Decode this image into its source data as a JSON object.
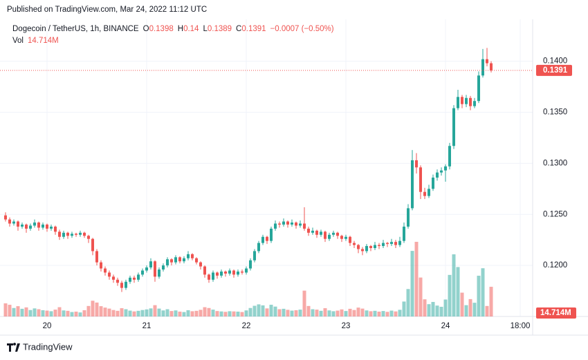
{
  "published": "Published on TradingView.com, Mar 24, 2022 11:12 UTC",
  "logo": "TradingView",
  "chart_data": {
    "type": "candlestick",
    "title": "Dogecoin / TetherUS, 1h, BINANCE",
    "legend_labels": [
      "O",
      "H",
      "L",
      "C"
    ],
    "change": "−0.0007 (−0.50%)",
    "up_color": "#26a69a",
    "down_color": "#ef5350",
    "grid": true,
    "xlim": [
      -1.333,
      127
    ],
    "xticks": [
      {
        "value": 10,
        "label": "20"
      },
      {
        "value": 34,
        "label": "21"
      },
      {
        "value": 58,
        "label": "22"
      },
      {
        "value": 82,
        "label": "23"
      },
      {
        "value": 106,
        "label": "24"
      },
      {
        "value": 124,
        "label": "18:00"
      }
    ],
    "ylim": [
      0.115,
      0.1441
    ],
    "yticks": [
      {
        "value": 0.12,
        "label": "0.1200"
      },
      {
        "value": 0.125,
        "label": "0.1250"
      },
      {
        "value": 0.13,
        "label": "0.1300"
      },
      {
        "value": 0.135,
        "label": "0.1350"
      },
      {
        "value": 0.14,
        "label": "0.1400"
      }
    ],
    "candles": [
      [
        0.1249,
        0.1252,
        0.1243,
        0.1245
      ],
      [
        0.1245,
        0.1247,
        0.1238,
        0.1241
      ],
      [
        0.1241,
        0.1245,
        0.1239,
        0.1243
      ],
      [
        0.1243,
        0.1244,
        0.1234,
        0.1238
      ],
      [
        0.1238,
        0.1242,
        0.1236,
        0.124
      ],
      [
        0.124,
        0.1241,
        0.1232,
        0.1236
      ],
      [
        0.1236,
        0.1241,
        0.1234,
        0.1239
      ],
      [
        0.1239,
        0.1245,
        0.1237,
        0.1242
      ],
      [
        0.1242,
        0.1243,
        0.1234,
        0.1237
      ],
      [
        0.1237,
        0.1242,
        0.1235,
        0.124
      ],
      [
        0.124,
        0.1241,
        0.1233,
        0.1236
      ],
      [
        0.1236,
        0.124,
        0.1234,
        0.1238
      ],
      [
        0.1238,
        0.1239,
        0.123,
        0.1233
      ],
      [
        0.1233,
        0.1235,
        0.1225,
        0.1228
      ],
      [
        0.1228,
        0.1234,
        0.1226,
        0.1232
      ],
      [
        0.1232,
        0.1233,
        0.1226,
        0.1229
      ],
      [
        0.1229,
        0.1233,
        0.1227,
        0.1231
      ],
      [
        0.1231,
        0.1232,
        0.1228,
        0.123
      ],
      [
        0.123,
        0.1234,
        0.1228,
        0.1232
      ],
      [
        0.1232,
        0.1233,
        0.1227,
        0.1229
      ],
      [
        0.1229,
        0.123,
        0.1222,
        0.1226
      ],
      [
        0.1226,
        0.1227,
        0.121,
        0.1214
      ],
      [
        0.1214,
        0.1216,
        0.12,
        0.1203
      ],
      [
        0.1203,
        0.1205,
        0.1194,
        0.1197
      ],
      [
        0.1197,
        0.1199,
        0.119,
        0.1193
      ],
      [
        0.1193,
        0.1195,
        0.1186,
        0.1189
      ],
      [
        0.1189,
        0.1191,
        0.1183,
        0.1186
      ],
      [
        0.1186,
        0.1188,
        0.118,
        0.1183
      ],
      [
        0.1183,
        0.1185,
        0.1174,
        0.1178
      ],
      [
        0.1178,
        0.1186,
        0.1176,
        0.1184
      ],
      [
        0.1184,
        0.119,
        0.1182,
        0.1188
      ],
      [
        0.1188,
        0.119,
        0.1183,
        0.1186
      ],
      [
        0.1186,
        0.1193,
        0.1184,
        0.1191
      ],
      [
        0.1191,
        0.1197,
        0.1189,
        0.1195
      ],
      [
        0.1195,
        0.12,
        0.1193,
        0.1198
      ],
      [
        0.1198,
        0.1207,
        0.1196,
        0.1204
      ],
      [
        0.1204,
        0.1205,
        0.1184,
        0.1189
      ],
      [
        0.1189,
        0.1198,
        0.1187,
        0.1196
      ],
      [
        0.1196,
        0.1202,
        0.1194,
        0.12
      ],
      [
        0.12,
        0.1208,
        0.1198,
        0.1206
      ],
      [
        0.1206,
        0.1207,
        0.12,
        0.1203
      ],
      [
        0.1203,
        0.121,
        0.1201,
        0.1208
      ],
      [
        0.1208,
        0.1209,
        0.1202,
        0.1204
      ],
      [
        0.1204,
        0.1209,
        0.1202,
        0.1207
      ],
      [
        0.1207,
        0.1214,
        0.1205,
        0.1211
      ],
      [
        0.1211,
        0.1212,
        0.1205,
        0.1207
      ],
      [
        0.1207,
        0.1208,
        0.1201,
        0.1203
      ],
      [
        0.1203,
        0.1204,
        0.1196,
        0.1199
      ],
      [
        0.1199,
        0.12,
        0.1188,
        0.1191
      ],
      [
        0.1191,
        0.1192,
        0.1183,
        0.1186
      ],
      [
        0.1186,
        0.1195,
        0.1184,
        0.1193
      ],
      [
        0.1193,
        0.1194,
        0.1187,
        0.119
      ],
      [
        0.119,
        0.1196,
        0.1188,
        0.1194
      ],
      [
        0.1194,
        0.1195,
        0.1189,
        0.1192
      ],
      [
        0.1192,
        0.1197,
        0.119,
        0.1195
      ],
      [
        0.1195,
        0.1196,
        0.1188,
        0.1191
      ],
      [
        0.1191,
        0.1196,
        0.1189,
        0.1194
      ],
      [
        0.1194,
        0.1196,
        0.1191,
        0.1193
      ],
      [
        0.1193,
        0.1199,
        0.1191,
        0.1197
      ],
      [
        0.1197,
        0.1207,
        0.1195,
        0.1205
      ],
      [
        0.1205,
        0.1216,
        0.1203,
        0.1214
      ],
      [
        0.1214,
        0.1224,
        0.1212,
        0.1222
      ],
      [
        0.1222,
        0.123,
        0.122,
        0.1228
      ],
      [
        0.1228,
        0.1229,
        0.1221,
        0.1224
      ],
      [
        0.1224,
        0.1238,
        0.1222,
        0.1236
      ],
      [
        0.1236,
        0.1244,
        0.1234,
        0.1241
      ],
      [
        0.1241,
        0.1243,
        0.1237,
        0.124
      ],
      [
        0.124,
        0.1246,
        0.1238,
        0.1243
      ],
      [
        0.1243,
        0.1244,
        0.1237,
        0.124
      ],
      [
        0.124,
        0.1245,
        0.1238,
        0.1242
      ],
      [
        0.1242,
        0.1243,
        0.1236,
        0.1239
      ],
      [
        0.1239,
        0.1244,
        0.1237,
        0.1241
      ],
      [
        0.1241,
        0.1257,
        0.1234,
        0.1236
      ],
      [
        0.1236,
        0.1238,
        0.1229,
        0.1232
      ],
      [
        0.1232,
        0.1237,
        0.123,
        0.1234
      ],
      [
        0.1234,
        0.1235,
        0.1227,
        0.123
      ],
      [
        0.123,
        0.1235,
        0.1228,
        0.1233
      ],
      [
        0.1233,
        0.1234,
        0.1223,
        0.1226
      ],
      [
        0.1226,
        0.1232,
        0.1224,
        0.123
      ],
      [
        0.123,
        0.1234,
        0.1228,
        0.1232
      ],
      [
        0.1232,
        0.1233,
        0.1226,
        0.1229
      ],
      [
        0.1229,
        0.123,
        0.1223,
        0.1226
      ],
      [
        0.1226,
        0.123,
        0.1224,
        0.1228
      ],
      [
        0.1228,
        0.1229,
        0.1219,
        0.1222
      ],
      [
        0.1222,
        0.1224,
        0.1217,
        0.122
      ],
      [
        0.122,
        0.1221,
        0.1212,
        0.1216
      ],
      [
        0.1216,
        0.1218,
        0.121,
        0.1214
      ],
      [
        0.1214,
        0.1221,
        0.1212,
        0.1219
      ],
      [
        0.1219,
        0.122,
        0.1214,
        0.1217
      ],
      [
        0.1217,
        0.1223,
        0.1215,
        0.122
      ],
      [
        0.122,
        0.1222,
        0.1216,
        0.1219
      ],
      [
        0.1219,
        0.1225,
        0.1217,
        0.1222
      ],
      [
        0.1222,
        0.1223,
        0.1218,
        0.1221
      ],
      [
        0.1221,
        0.1226,
        0.1219,
        0.1223
      ],
      [
        0.1223,
        0.1225,
        0.1217,
        0.122
      ],
      [
        0.122,
        0.1228,
        0.1218,
        0.1224
      ],
      [
        0.1224,
        0.1242,
        0.1222,
        0.1238
      ],
      [
        0.1238,
        0.126,
        0.1236,
        0.1256
      ],
      [
        0.1256,
        0.1313,
        0.1254,
        0.1303
      ],
      [
        0.1303,
        0.131,
        0.129,
        0.1296
      ],
      [
        0.1296,
        0.1298,
        0.1265,
        0.1272
      ],
      [
        0.1272,
        0.1276,
        0.1265,
        0.1268
      ],
      [
        0.1268,
        0.1279,
        0.1266,
        0.1275
      ],
      [
        0.1275,
        0.1289,
        0.1273,
        0.1286
      ],
      [
        0.1286,
        0.1294,
        0.1283,
        0.1291
      ],
      [
        0.1291,
        0.1296,
        0.1288,
        0.1293
      ],
      [
        0.1293,
        0.1299,
        0.1282,
        0.1297
      ],
      [
        0.1297,
        0.132,
        0.1294,
        0.1317
      ],
      [
        0.1317,
        0.1357,
        0.1314,
        0.1354
      ],
      [
        0.1354,
        0.1372,
        0.1352,
        0.1365
      ],
      [
        0.1365,
        0.1367,
        0.1354,
        0.1358
      ],
      [
        0.1358,
        0.1367,
        0.1355,
        0.1364
      ],
      [
        0.1364,
        0.1366,
        0.1352,
        0.1356
      ],
      [
        0.1356,
        0.1364,
        0.1354,
        0.1361
      ],
      [
        0.1361,
        0.139,
        0.1359,
        0.1386
      ],
      [
        0.1386,
        0.1412,
        0.1384,
        0.1402
      ],
      [
        0.1402,
        0.1413,
        0.1395,
        0.1398
      ],
      [
        0.1398,
        0.14,
        0.1389,
        0.1391
      ]
    ],
    "volume": {
      "name": "Vol",
      "lim": [
        0,
        50
      ],
      "last_label": "14.714M",
      "values": [
        6.5,
        5.8,
        4.2,
        5.1,
        3.8,
        4.5,
        3.2,
        4.0,
        3.6,
        3.1,
        2.9,
        2.6,
        3.4,
        4.6,
        3.0,
        2.8,
        2.2,
        2.4,
        2.0,
        3.1,
        5.2,
        7.8,
        6.9,
        5.1,
        4.4,
        3.9,
        3.2,
        2.8,
        4.1,
        3.6,
        2.9,
        2.5,
        2.8,
        3.2,
        3.5,
        4.0,
        5.6,
        3.9,
        3.0,
        3.6,
        2.7,
        3.0,
        2.4,
        2.2,
        3.1,
        2.6,
        2.8,
        3.3,
        4.6,
        4.2,
        3.4,
        2.7,
        2.5,
        2.3,
        2.6,
        2.5,
        2.4,
        2.2,
        3.0,
        4.2,
        5.3,
        6.0,
        5.5,
        4.0,
        5.8,
        4.9,
        3.6,
        3.8,
        3.3,
        2.9,
        3.1,
        3.4,
        12.8,
        5.2,
        3.6,
        3.4,
        2.8,
        4.1,
        3.0,
        2.6,
        2.9,
        3.5,
        2.7,
        3.8,
        3.2,
        4.4,
        3.9,
        3.0,
        2.6,
        2.8,
        2.4,
        2.7,
        2.3,
        2.9,
        2.5,
        3.3,
        7.4,
        13.6,
        32.5,
        37.0,
        19.3,
        8.5,
        6.1,
        7.2,
        5.4,
        4.8,
        8.4,
        20.6,
        30.8,
        24.5,
        11.8,
        5.6,
        8.6,
        6.8,
        20.2,
        23.9,
        5.2,
        14.714
      ]
    }
  }
}
